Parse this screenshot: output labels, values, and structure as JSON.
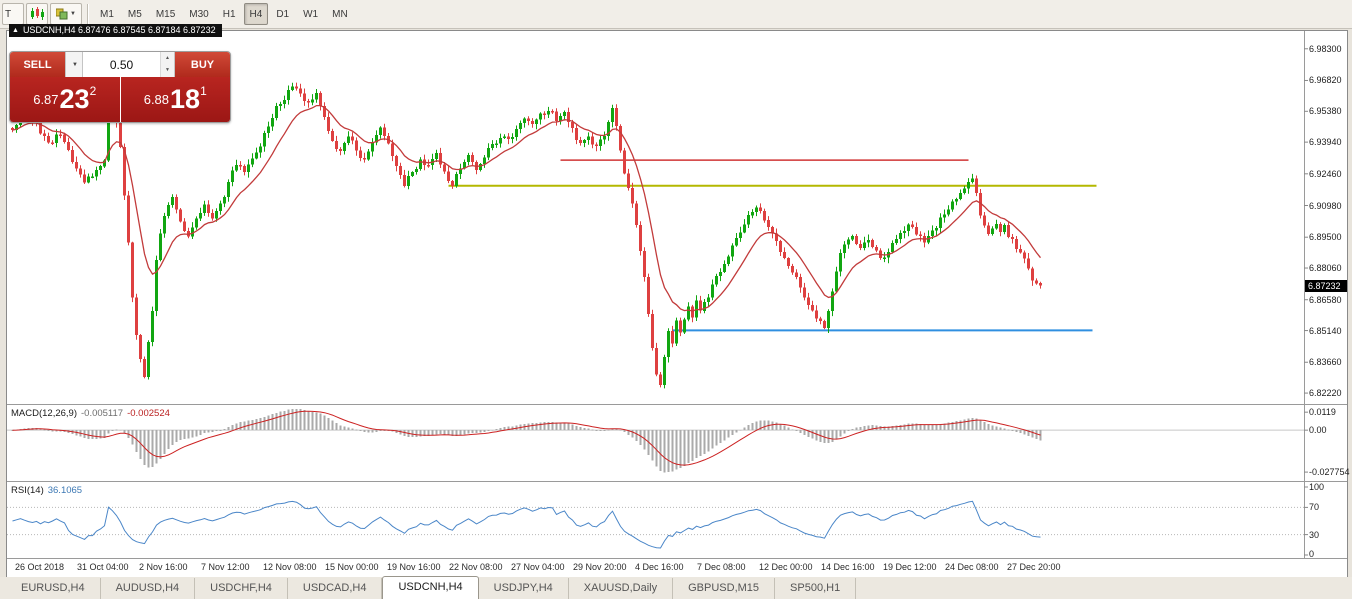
{
  "toolbar": {
    "timeframes": [
      "M1",
      "M5",
      "M15",
      "M30",
      "H1",
      "H4",
      "D1",
      "W1",
      "MN"
    ],
    "active_timeframe": "H4",
    "clipped_button_glyph": "T"
  },
  "icons": {
    "dropdown": "▼",
    "spin_up": "▲",
    "spin_down": "▼",
    "collapse": "▲"
  },
  "chart_header": {
    "text": "USDCNH,H4 6.87476 6.87545 6.87184 6.87232"
  },
  "trade_panel": {
    "sell_label": "SELL",
    "buy_label": "BUY",
    "volume": "0.50",
    "sell": {
      "prefix": "6.87",
      "big": "23",
      "sup": "2"
    },
    "buy": {
      "prefix": "6.88",
      "big": "18",
      "sup": "1"
    }
  },
  "macd_panel": {
    "name": "MACD(12,26,9)",
    "value_main": "-0.005117",
    "value_signal": "-0.002524",
    "scale": [
      {
        "label": "0.0119",
        "value": 0.0119
      },
      {
        "label": "0.00",
        "value": 0
      },
      {
        "label": "-0.027754",
        "value": -0.027754
      }
    ]
  },
  "rsi_panel": {
    "name": "RSI(14)",
    "value": "36.1065",
    "scale": [
      {
        "label": "100",
        "value": 100
      },
      {
        "label": "70",
        "value": 70
      },
      {
        "label": "30",
        "value": 30
      },
      {
        "label": "0",
        "value": 0
      }
    ],
    "levels": [
      70,
      30
    ]
  },
  "tabs": {
    "items": [
      "EURUSD,H4",
      "AUDUSD,H4",
      "USDCHF,H4",
      "USDCAD,H4",
      "USDCNH,H4",
      "USDJPY,H4",
      "XAUUSD,Daily",
      "GBPUSD,M15",
      "SP500,H1"
    ],
    "active": "USDCNH,H4"
  },
  "colors": {
    "up": "#11a611",
    "down": "#de4040",
    "ma": "#c23b3b",
    "macd_hist": "#aaaaaa",
    "macd_signal": "#cc2222",
    "rsi": "#4a86c8",
    "hline_red": "#d03535",
    "hline_yellow": "#b4b800",
    "hline_blue": "#2f8fe0"
  },
  "chart_data": {
    "type": "candlestick",
    "symbol": "USDCNH",
    "timeframe": "H4",
    "title": "USDCNH,H4",
    "ohlc": {
      "open": 6.87476,
      "high": 6.87545,
      "low": 6.87184,
      "close": 6.87232
    },
    "last_price": "6.87232",
    "candle_count": 258,
    "ylim": [
      6.8222,
      6.983
    ],
    "y_ticks": [
      "6.98300",
      "6.96820",
      "6.95380",
      "6.93940",
      "6.92460",
      "6.90980",
      "6.89500",
      "6.88060",
      "6.86580",
      "6.85140",
      "6.83660",
      "6.82220"
    ],
    "x_labels": [
      "26 Oct 2018",
      "31 Oct 04:00",
      "2 Nov 16:00",
      "7 Nov 12:00",
      "12 Nov 08:00",
      "15 Nov 00:00",
      "19 Nov 16:00",
      "22 Nov 08:00",
      "27 Nov 04:00",
      "29 Nov 20:00",
      "4 Dec 16:00",
      "7 Dec 08:00",
      "12 Dec 00:00",
      "14 Dec 16:00",
      "19 Dec 12:00",
      "24 Dec 08:00",
      "27 Dec 20:00"
    ],
    "moving_average": {
      "period": 12,
      "color_key": "ma"
    },
    "hlines": [
      {
        "name": "resistance-line-red",
        "price": 6.931,
        "from_index": 137,
        "to_index": 239,
        "color_key": "hline_red",
        "width": 1.4
      },
      {
        "name": "resistance-line-yellow",
        "price": 6.919,
        "from_index": 109,
        "to_index": 271,
        "color_key": "hline_yellow",
        "width": 2
      },
      {
        "name": "support-line-blue",
        "price": 6.8515,
        "from_index": 165,
        "to_index": 270,
        "color_key": "hline_blue",
        "width": 2
      }
    ],
    "price_path_anchors": [
      [
        0,
        6.946
      ],
      [
        3,
        6.953
      ],
      [
        6,
        6.948
      ],
      [
        9,
        6.938
      ],
      [
        12,
        6.944
      ],
      [
        15,
        6.93
      ],
      [
        18,
        6.92
      ],
      [
        21,
        6.926
      ],
      [
        23,
        6.932
      ],
      [
        24,
        6.96
      ],
      [
        25,
        6.955
      ],
      [
        26,
        6.948
      ],
      [
        27,
        6.938
      ],
      [
        28,
        6.915
      ],
      [
        29,
        6.893
      ],
      [
        30,
        6.868
      ],
      [
        31,
        6.85
      ],
      [
        32,
        6.838
      ],
      [
        33,
        6.83
      ],
      [
        34,
        6.846
      ],
      [
        35,
        6.86
      ],
      [
        36,
        6.885
      ],
      [
        38,
        6.906
      ],
      [
        40,
        6.914
      ],
      [
        42,
        6.902
      ],
      [
        44,
        6.896
      ],
      [
        46,
        6.905
      ],
      [
        48,
        6.91
      ],
      [
        50,
        6.903
      ],
      [
        52,
        6.91
      ],
      [
        54,
        6.92
      ],
      [
        56,
        6.93
      ],
      [
        58,
        6.925
      ],
      [
        60,
        6.932
      ],
      [
        62,
        6.938
      ],
      [
        64,
        6.948
      ],
      [
        66,
        6.955
      ],
      [
        68,
        6.96
      ],
      [
        70,
        6.965
      ],
      [
        72,
        6.962
      ],
      [
        74,
        6.957
      ],
      [
        76,
        6.963
      ],
      [
        78,
        6.952
      ],
      [
        80,
        6.94
      ],
      [
        82,
        6.935
      ],
      [
        84,
        6.942
      ],
      [
        86,
        6.936
      ],
      [
        88,
        6.93
      ],
      [
        90,
        6.938
      ],
      [
        92,
        6.945
      ],
      [
        94,
        6.94
      ],
      [
        96,
        6.928
      ],
      [
        98,
        6.92
      ],
      [
        100,
        6.925
      ],
      [
        102,
        6.931
      ],
      [
        104,
        6.928
      ],
      [
        106,
        6.934
      ],
      [
        108,
        6.925
      ],
      [
        110,
        6.92
      ],
      [
        112,
        6.928
      ],
      [
        114,
        6.932
      ],
      [
        116,
        6.926
      ],
      [
        118,
        6.933
      ],
      [
        120,
        6.938
      ],
      [
        122,
        6.942
      ],
      [
        124,
        6.94
      ],
      [
        126,
        6.945
      ],
      [
        128,
        6.95
      ],
      [
        130,
        6.948
      ],
      [
        132,
        6.952
      ],
      [
        134,
        6.955
      ],
      [
        136,
        6.95
      ],
      [
        138,
        6.953
      ],
      [
        140,
        6.945
      ],
      [
        142,
        6.938
      ],
      [
        144,
        6.941
      ],
      [
        146,
        6.937
      ],
      [
        148,
        6.943
      ],
      [
        150,
        6.955
      ],
      [
        151,
        6.946
      ],
      [
        152,
        6.935
      ],
      [
        153,
        6.925
      ],
      [
        154,
        6.918
      ],
      [
        155,
        6.91
      ],
      [
        156,
        6.9
      ],
      [
        157,
        6.888
      ],
      [
        158,
        6.876
      ],
      [
        159,
        6.86
      ],
      [
        160,
        6.842
      ],
      [
        161,
        6.831
      ],
      [
        162,
        6.827
      ],
      [
        163,
        6.84
      ],
      [
        164,
        6.852
      ],
      [
        165,
        6.845
      ],
      [
        166,
        6.856
      ],
      [
        167,
        6.85
      ],
      [
        168,
        6.856
      ],
      [
        169,
        6.862
      ],
      [
        170,
        6.858
      ],
      [
        171,
        6.865
      ],
      [
        172,
        6.86
      ],
      [
        174,
        6.868
      ],
      [
        176,
        6.876
      ],
      [
        178,
        6.882
      ],
      [
        180,
        6.89
      ],
      [
        182,
        6.898
      ],
      [
        184,
        6.905
      ],
      [
        186,
        6.91
      ],
      [
        188,
        6.904
      ],
      [
        190,
        6.896
      ],
      [
        192,
        6.888
      ],
      [
        194,
        6.882
      ],
      [
        196,
        6.876
      ],
      [
        198,
        6.868
      ],
      [
        200,
        6.86
      ],
      [
        202,
        6.855
      ],
      [
        203,
        6.853
      ],
      [
        204,
        6.86
      ],
      [
        205,
        6.87
      ],
      [
        206,
        6.88
      ],
      [
        207,
        6.887
      ],
      [
        208,
        6.892
      ],
      [
        210,
        6.895
      ],
      [
        212,
        6.89
      ],
      [
        214,
        6.894
      ],
      [
        216,
        6.888
      ],
      [
        218,
        6.885
      ],
      [
        220,
        6.891
      ],
      [
        222,
        6.896
      ],
      [
        224,
        6.901
      ],
      [
        226,
        6.897
      ],
      [
        228,
        6.893
      ],
      [
        230,
        6.898
      ],
      [
        232,
        6.903
      ],
      [
        234,
        6.909
      ],
      [
        236,
        6.913
      ],
      [
        238,
        6.918
      ],
      [
        240,
        6.9235
      ],
      [
        241,
        6.915
      ],
      [
        242,
        6.906
      ],
      [
        243,
        6.9
      ],
      [
        244,
        6.896
      ],
      [
        245,
        6.899
      ],
      [
        246,
        6.901
      ],
      [
        247,
        6.898
      ],
      [
        248,
        6.9
      ],
      [
        249,
        6.896
      ],
      [
        250,
        6.893
      ],
      [
        251,
        6.89
      ],
      [
        252,
        6.887
      ],
      [
        253,
        6.884
      ],
      [
        254,
        6.88
      ],
      [
        255,
        6.876
      ],
      [
        256,
        6.8735
      ],
      [
        257,
        6.8723
      ]
    ],
    "indicators": [
      {
        "name": "MACD",
        "params": [
          12,
          26,
          9
        ],
        "values": [
          -0.005117,
          -0.002524
        ]
      },
      {
        "name": "RSI",
        "params": [
          14
        ],
        "value": 36.1065
      }
    ]
  }
}
